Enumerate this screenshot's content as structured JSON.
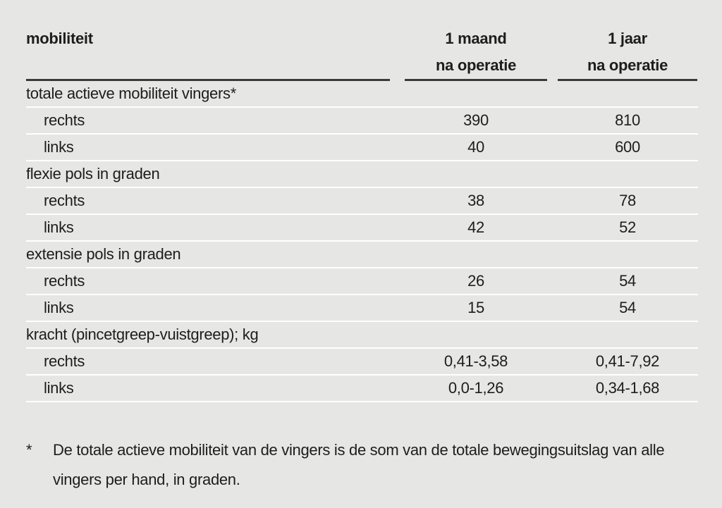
{
  "table": {
    "header": {
      "col1": "mobiliteit",
      "col2_line1": "1 maand",
      "col2_line2": "na operatie",
      "col3_line1": "1 jaar",
      "col3_line2": "na operatie"
    },
    "sections": [
      {
        "label": "totale actieve mobiliteit vingers*",
        "rows": [
          {
            "label": "rechts",
            "month": "390",
            "year": "810"
          },
          {
            "label": "links",
            "month": "40",
            "year": "600"
          }
        ]
      },
      {
        "label": "flexie pols in graden",
        "rows": [
          {
            "label": "rechts",
            "month": "38",
            "year": "78"
          },
          {
            "label": "links",
            "month": "42",
            "year": "52"
          }
        ]
      },
      {
        "label": "extensie pols in graden",
        "rows": [
          {
            "label": "rechts",
            "month": "26",
            "year": "54"
          },
          {
            "label": "links",
            "month": "15",
            "year": "54"
          }
        ]
      },
      {
        "label": "kracht (pincetgreep-vuistgreep); kg",
        "rows": [
          {
            "label": "rechts",
            "month": "0,41-3,58",
            "year": "0,41-7,92"
          },
          {
            "label": "links",
            "month": "0,0-1,26",
            "year": "0,34-1,68"
          }
        ]
      }
    ]
  },
  "footnote": {
    "marker": "*",
    "text": "De totale actieve mobiliteit van de vingers is de som van de totale bewegingsuitslag van alle vingers per hand, in graden."
  },
  "colors": {
    "background": "#e6e6e4",
    "text": "#1d1d1b",
    "header_rule": "#3a3a38",
    "row_separator": "#ffffff"
  }
}
